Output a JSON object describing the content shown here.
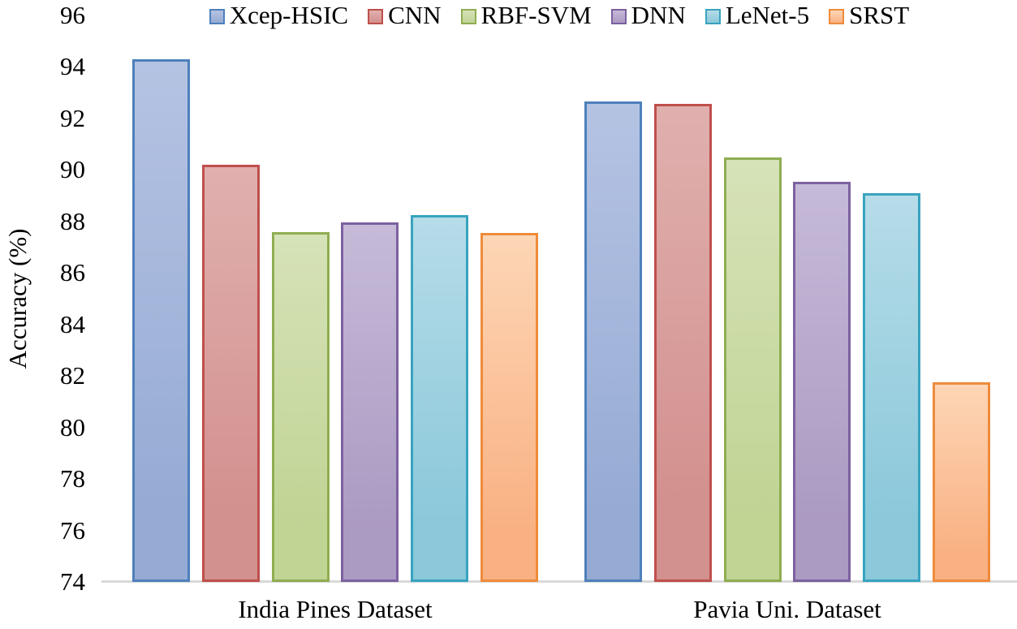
{
  "chart_data": {
    "type": "bar",
    "title": "",
    "ylabel": "Accuracy (%)",
    "xlabel": "",
    "ylim": [
      74,
      96
    ],
    "ytick_step": 2,
    "grid": false,
    "legend_position": "top",
    "axis_line_color": "#d9d9d9",
    "text_color": "#000000",
    "categories": [
      "India Pines Dataset",
      "Pavia Uni. Dataset"
    ],
    "series": [
      {
        "name": "Xcep-HSIC",
        "values": [
          94.3,
          92.65
        ],
        "border": "#4e80bb",
        "fill": "#96abd4",
        "fill_light": "#b5c3e3"
      },
      {
        "name": "CNN",
        "values": [
          90.2,
          92.55
        ],
        "border": "#bf4f4c",
        "fill": "#d2908e",
        "fill_light": "#e0b0ae"
      },
      {
        "name": "RBF-SVM",
        "values": [
          87.6,
          90.5
        ],
        "border": "#8fad52",
        "fill": "#c0d494",
        "fill_light": "#d6e2b8"
      },
      {
        "name": "DNN",
        "values": [
          87.95,
          89.55
        ],
        "border": "#7c61a0",
        "fill": "#ab9ac2",
        "fill_light": "#c6bad8"
      },
      {
        "name": "LeNet-5",
        "values": [
          88.25,
          89.1
        ],
        "border": "#38a3bf",
        "fill": "#8ac8da",
        "fill_light": "#b6dce8"
      },
      {
        "name": "SRST",
        "values": [
          87.55,
          81.75
        ],
        "border": "#ee8b3b",
        "fill": "#f9b183",
        "fill_light": "#fdd6b6"
      }
    ]
  }
}
